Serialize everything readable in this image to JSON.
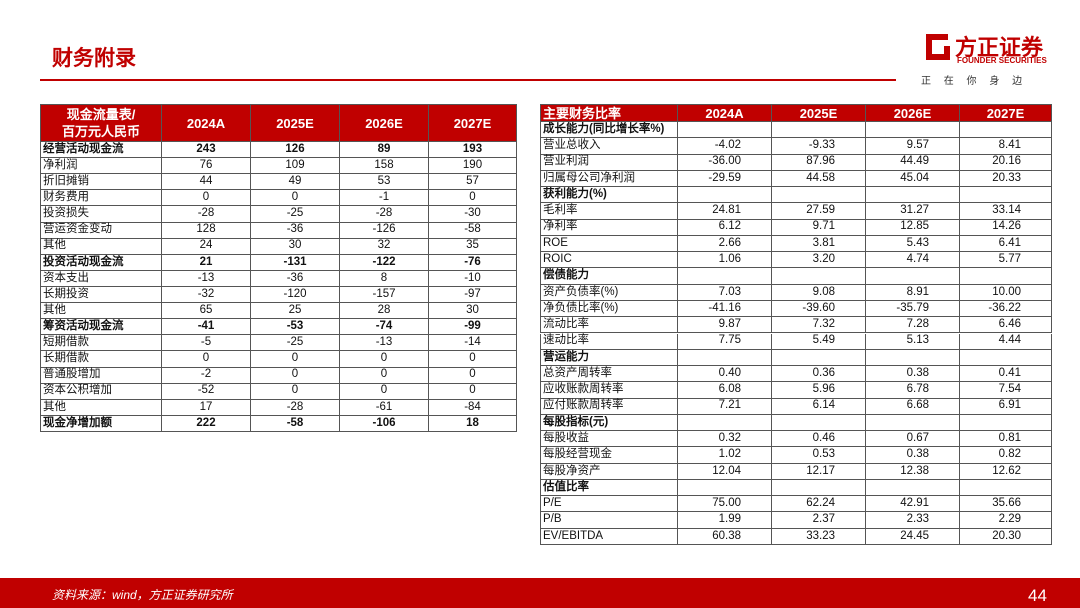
{
  "header": {
    "title": "财务附录",
    "logo_name": "方正证券",
    "logo_english": "FOUNDER SECURITIES",
    "slogan": "正 在 你 身 边"
  },
  "cash_flow_table": {
    "header": [
      "现金流量表/",
      "百万元人民币"
    ],
    "columns": [
      "2024A",
      "2025E",
      "2026E",
      "2027E"
    ],
    "rows": [
      {
        "label": "经营活动现金流",
        "values": [
          243,
          126,
          89,
          193
        ],
        "bold": true
      },
      {
        "label": "净利润",
        "values": [
          76,
          109,
          158,
          190
        ]
      },
      {
        "label": "折旧摊销",
        "values": [
          44,
          49,
          53,
          57
        ]
      },
      {
        "label": "财务费用",
        "values": [
          0,
          0,
          -1,
          0
        ]
      },
      {
        "label": "投资损失",
        "values": [
          -28,
          -25,
          -28,
          -30
        ]
      },
      {
        "label": "营运资金变动",
        "values": [
          128,
          -36,
          -126,
          -58
        ]
      },
      {
        "label": "其他",
        "values": [
          24,
          30,
          32,
          35
        ]
      },
      {
        "label": "投资活动现金流",
        "values": [
          21,
          -131,
          -122,
          -76
        ],
        "bold": true
      },
      {
        "label": "资本支出",
        "values": [
          -13,
          -36,
          8,
          -10
        ]
      },
      {
        "label": "长期投资",
        "values": [
          -32,
          -120,
          -157,
          -97
        ]
      },
      {
        "label": "其他",
        "values": [
          65,
          25,
          28,
          30
        ]
      },
      {
        "label": "筹资活动现金流",
        "values": [
          -41,
          -53,
          -74,
          -99
        ],
        "bold": true
      },
      {
        "label": "短期借款",
        "values": [
          -5,
          -25,
          -13,
          -14
        ]
      },
      {
        "label": "长期借款",
        "values": [
          0,
          0,
          0,
          0
        ]
      },
      {
        "label": "普通股增加",
        "values": [
          -2,
          0,
          0,
          0
        ]
      },
      {
        "label": "资本公积增加",
        "values": [
          -52,
          0,
          0,
          0
        ]
      },
      {
        "label": "其他",
        "values": [
          17,
          -28,
          -61,
          -84
        ]
      },
      {
        "label": "现金净增加额",
        "values": [
          222,
          -58,
          -106,
          18
        ],
        "bold": true
      }
    ]
  },
  "ratio_table": {
    "header": "主要财务比率",
    "columns": [
      "2024A",
      "2025E",
      "2026E",
      "2027E"
    ],
    "rows": [
      {
        "label": "成长能力(同比增长率%)"
      },
      {
        "label": "营业总收入",
        "values": [
          "-4.02",
          "-9.33",
          "9.57",
          "8.41"
        ]
      },
      {
        "label": "营业利润",
        "values": [
          "-36.00",
          "87.96",
          "44.49",
          "20.16"
        ]
      },
      {
        "label": "归属母公司净利润",
        "values": [
          "-29.59",
          "44.58",
          "45.04",
          "20.33"
        ]
      },
      {
        "label": "获利能力(%)"
      },
      {
        "label": "毛利率",
        "values": [
          "24.81",
          "27.59",
          "31.27",
          "33.14"
        ]
      },
      {
        "label": "净利率",
        "values": [
          "6.12",
          "9.71",
          "12.85",
          "14.26"
        ]
      },
      {
        "label": "ROE",
        "values": [
          "2.66",
          "3.81",
          "5.43",
          "6.41"
        ]
      },
      {
        "label": "ROIC",
        "values": [
          "1.06",
          "3.20",
          "4.74",
          "5.77"
        ]
      },
      {
        "label": "偿债能力"
      },
      {
        "label": "资产负债率(%)",
        "values": [
          "7.03",
          "9.08",
          "8.91",
          "10.00"
        ]
      },
      {
        "label": "净负债比率(%)",
        "values": [
          "-41.16",
          "-39.60",
          "-35.79",
          "-36.22"
        ]
      },
      {
        "label": "流动比率",
        "values": [
          "9.87",
          "7.32",
          "7.28",
          "6.46"
        ]
      },
      {
        "label": "速动比率",
        "values": [
          "7.75",
          "5.49",
          "5.13",
          "4.44"
        ]
      },
      {
        "label": "营运能力"
      },
      {
        "label": "总资产周转率",
        "values": [
          "0.40",
          "0.36",
          "0.38",
          "0.41"
        ]
      },
      {
        "label": "应收账款周转率",
        "values": [
          "6.08",
          "5.96",
          "6.78",
          "7.54"
        ]
      },
      {
        "label": "应付账款周转率",
        "values": [
          "7.21",
          "6.14",
          "6.68",
          "6.91"
        ]
      },
      {
        "label": "每股指标(元)"
      },
      {
        "label": "每股收益",
        "values": [
          "0.32",
          "0.46",
          "0.67",
          "0.81"
        ]
      },
      {
        "label": "每股经营现金",
        "values": [
          "1.02",
          "0.53",
          "0.38",
          "0.82"
        ]
      },
      {
        "label": "每股净资产",
        "values": [
          "12.04",
          "12.17",
          "12.38",
          "12.62"
        ]
      },
      {
        "label": "估值比率"
      },
      {
        "label": "P/E",
        "values": [
          "75.00",
          "62.24",
          "42.91",
          "35.66"
        ]
      },
      {
        "label": "P/B",
        "values": [
          "1.99",
          "2.37",
          "2.33",
          "2.29"
        ]
      },
      {
        "label": "EV/EBITDA",
        "values": [
          "60.38",
          "33.23",
          "24.45",
          "20.30"
        ]
      }
    ]
  },
  "footer": {
    "source": "资料来源：wind，方正证券研究所",
    "page": "44"
  }
}
